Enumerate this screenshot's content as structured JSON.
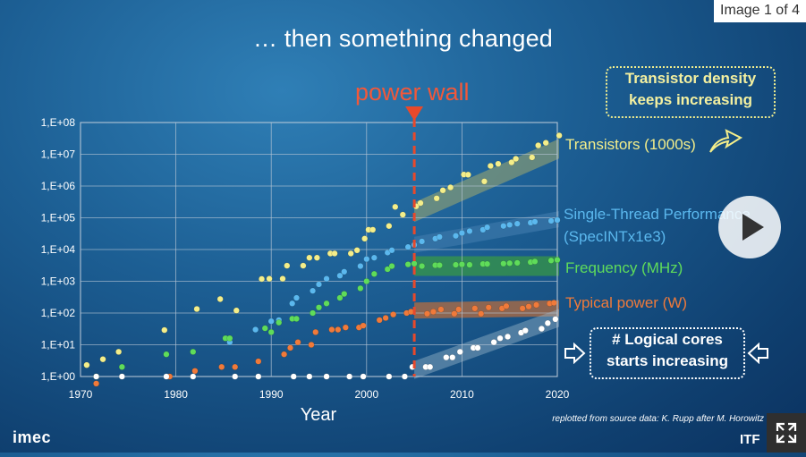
{
  "slide": {
    "title": "… then something changed",
    "counter": "Image 1 of 4",
    "power_wall_label": "power wall",
    "callout_density_line1": "Transistor density",
    "callout_density_line2": "keeps increasing",
    "callout_cores_line1": "# Logical cores",
    "callout_cores_line2": "starts increasing",
    "credit": "replotted from source data: K. Rupp after M. Horowitz",
    "logo_left": "imec",
    "logo_right": "ITF",
    "colors": {
      "transistors": "#f4ee8a",
      "single_thread": "#5bb8ee",
      "frequency": "#5fdc5a",
      "power": "#f07a3a",
      "cores": "#ffffff",
      "power_wall": "#e8492b"
    }
  },
  "chart_data": {
    "type": "scatter",
    "xlabel": "Year",
    "ylabel": "",
    "xlim": [
      1970,
      2020
    ],
    "ylim": [
      1,
      100000000
    ],
    "y_scale": "log",
    "x_ticks": [
      "1970",
      "1980",
      "1990",
      "2000",
      "2010",
      "2020"
    ],
    "y_ticks": [
      "1,E+00",
      "1,E+01",
      "1,E+02",
      "1,E+03",
      "1,E+04",
      "1,E+05",
      "1,E+06",
      "1,E+07",
      "1,E+08"
    ],
    "grid": true,
    "power_wall_year": 2005,
    "series": [
      {
        "name": "Transistors (1000s)",
        "color": "#f4ee8a",
        "points": [
          [
            1971,
            2.3
          ],
          [
            1972,
            3.5
          ],
          [
            1974,
            6
          ],
          [
            1979,
            29
          ],
          [
            1982,
            134
          ],
          [
            1985,
            275
          ],
          [
            1986,
            120
          ],
          [
            1989,
            1180
          ],
          [
            1990,
            1200
          ],
          [
            1991,
            1200
          ],
          [
            1992,
            3100
          ],
          [
            1993,
            3100
          ],
          [
            1994,
            5500
          ],
          [
            1995,
            5500
          ],
          [
            1996,
            7500
          ],
          [
            1997,
            7500
          ],
          [
            1998,
            7500
          ],
          [
            1999,
            9500
          ],
          [
            2000,
            22000
          ],
          [
            2000,
            42000
          ],
          [
            2001,
            42000
          ],
          [
            2002,
            55000
          ],
          [
            2003,
            220000
          ],
          [
            2004,
            125000
          ],
          [
            2005,
            230000
          ],
          [
            2006,
            291000
          ],
          [
            2007,
            410000
          ],
          [
            2008,
            731000
          ],
          [
            2009,
            904000
          ],
          [
            2010,
            2300000
          ],
          [
            2011,
            2270000
          ],
          [
            2012,
            1400000
          ],
          [
            2013,
            4300000
          ],
          [
            2014,
            5000000
          ],
          [
            2015,
            5560000
          ],
          [
            2016,
            7200000
          ],
          [
            2017,
            8000000
          ],
          [
            2018,
            19000000
          ],
          [
            2019,
            23000000
          ],
          [
            2020,
            39000000
          ]
        ]
      },
      {
        "name": "Single-Thread Performance (SpecINTx1e3)",
        "color": "#5bb8ee",
        "points": [
          [
            1986,
            12
          ],
          [
            1988,
            30
          ],
          [
            1990,
            55
          ],
          [
            1991,
            60
          ],
          [
            1992,
            200
          ],
          [
            1993,
            300
          ],
          [
            1994,
            500
          ],
          [
            1995,
            800
          ],
          [
            1996,
            1200
          ],
          [
            1997,
            1500
          ],
          [
            1998,
            2000
          ],
          [
            1999,
            3000
          ],
          [
            2000,
            5000
          ],
          [
            2001,
            5500
          ],
          [
            2002,
            8000
          ],
          [
            2003,
            9500
          ],
          [
            2004,
            12000
          ],
          [
            2005,
            14000
          ],
          [
            2006,
            18000
          ],
          [
            2007,
            22000
          ],
          [
            2008,
            25000
          ],
          [
            2009,
            27000
          ],
          [
            2010,
            33000
          ],
          [
            2011,
            38000
          ],
          [
            2012,
            42000
          ],
          [
            2013,
            50000
          ],
          [
            2014,
            55000
          ],
          [
            2015,
            60000
          ],
          [
            2016,
            65000
          ],
          [
            2017,
            70000
          ],
          [
            2018,
            75000
          ],
          [
            2019,
            80000
          ],
          [
            2020,
            85000
          ]
        ]
      },
      {
        "name": "Frequency (MHz)",
        "color": "#5fdc5a",
        "points": [
          [
            1972,
            1
          ],
          [
            1974,
            2
          ],
          [
            1979,
            5
          ],
          [
            1982,
            6
          ],
          [
            1985,
            16
          ],
          [
            1986,
            16
          ],
          [
            1989,
            33
          ],
          [
            1990,
            25
          ],
          [
            1991,
            50
          ],
          [
            1992,
            66
          ],
          [
            1993,
            66
          ],
          [
            1994,
            100
          ],
          [
            1995,
            150
          ],
          [
            1996,
            200
          ],
          [
            1997,
            300
          ],
          [
            1998,
            400
          ],
          [
            1999,
            600
          ],
          [
            2000,
            1000
          ],
          [
            2001,
            1700
          ],
          [
            2002,
            2400
          ],
          [
            2003,
            3000
          ],
          [
            2004,
            3400
          ],
          [
            2005,
            3600
          ],
          [
            2006,
            3000
          ],
          [
            2007,
            3200
          ],
          [
            2008,
            3200
          ],
          [
            2009,
            3300
          ],
          [
            2010,
            3400
          ],
          [
            2011,
            3300
          ],
          [
            2012,
            3500
          ],
          [
            2013,
            3500
          ],
          [
            2014,
            3600
          ],
          [
            2015,
            3700
          ],
          [
            2016,
            3800
          ],
          [
            2017,
            4000
          ],
          [
            2018,
            4200
          ],
          [
            2019,
            4500
          ],
          [
            2020,
            4700
          ]
        ]
      },
      {
        "name": "Typical power (W)",
        "color": "#f07a3a",
        "points": [
          [
            1972,
            0.5
          ],
          [
            1979,
            1
          ],
          [
            1982,
            1.5
          ],
          [
            1985,
            2
          ],
          [
            1986,
            2
          ],
          [
            1989,
            3
          ],
          [
            1991,
            5
          ],
          [
            1992,
            8
          ],
          [
            1993,
            12
          ],
          [
            1994,
            10
          ],
          [
            1995,
            25
          ],
          [
            1996,
            30
          ],
          [
            1997,
            30
          ],
          [
            1998,
            35
          ],
          [
            1999,
            35
          ],
          [
            2000,
            40
          ],
          [
            2001,
            60
          ],
          [
            2002,
            70
          ],
          [
            2003,
            90
          ],
          [
            2004,
            100
          ],
          [
            2005,
            110
          ],
          [
            2006,
            95
          ],
          [
            2007,
            110
          ],
          [
            2008,
            130
          ],
          [
            2009,
            95
          ],
          [
            2010,
            130
          ],
          [
            2011,
            140
          ],
          [
            2012,
            95
          ],
          [
            2013,
            150
          ],
          [
            2014,
            140
          ],
          [
            2015,
            165
          ],
          [
            2016,
            140
          ],
          [
            2017,
            160
          ],
          [
            2018,
            180
          ],
          [
            2019,
            200
          ],
          [
            2020,
            210
          ]
        ]
      },
      {
        "name": "# Logical cores",
        "color": "#ffffff",
        "points": [
          [
            1972,
            1
          ],
          [
            1974,
            1
          ],
          [
            1979,
            1
          ],
          [
            1982,
            1
          ],
          [
            1986,
            1
          ],
          [
            1989,
            1
          ],
          [
            1992,
            1
          ],
          [
            1994,
            1
          ],
          [
            1996,
            1
          ],
          [
            1998,
            1
          ],
          [
            2000,
            1
          ],
          [
            2002,
            1
          ],
          [
            2004,
            1
          ],
          [
            2005,
            2
          ],
          [
            2006,
            2
          ],
          [
            2007,
            2
          ],
          [
            2008,
            4
          ],
          [
            2009,
            4
          ],
          [
            2010,
            6
          ],
          [
            2011,
            8
          ],
          [
            2012,
            8
          ],
          [
            2013,
            12
          ],
          [
            2014,
            16
          ],
          [
            2015,
            18
          ],
          [
            2016,
            24
          ],
          [
            2017,
            28
          ],
          [
            2018,
            32
          ],
          [
            2019,
            48
          ],
          [
            2020,
            64
          ]
        ]
      }
    ]
  }
}
